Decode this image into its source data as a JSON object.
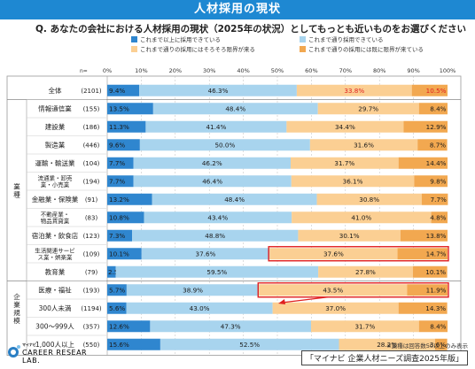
{
  "header": {
    "title": "人材採用の現状",
    "question": "Q.  あなたの会社における人材採用の現状（2025年の状況）としてもっとも近いものをお選びください"
  },
  "footer": {
    "note": "※業種は回答数50以上のみ表示",
    "source": "「マイナビ 企業人材ニーズ調査2025年版」"
  },
  "logo": {
    "small_text": "マイナビ",
    "line1": "CAREER RESEARCH",
    "line2": "LAB."
  },
  "chart_data": {
    "type": "bar",
    "orientation": "horizontal",
    "stacked": true,
    "n_label": "n=",
    "xlim": [
      0,
      100
    ],
    "x_ticks": [
      "0%",
      "10%",
      "20%",
      "30%",
      "40%",
      "50%",
      "60%",
      "70%",
      "80%",
      "90%",
      "100%"
    ],
    "grid": true,
    "legend_position": "top",
    "series": [
      {
        "name": "これまで以上に採用できている",
        "color": "#2f86cf"
      },
      {
        "name": "これまで通り採用できている",
        "color": "#a8d4ee"
      },
      {
        "name": "これまで通りの採用にはそろそろ限界が来る",
        "color": "#fbcf93"
      },
      {
        "name": "これまで通りの採用には既に限界が来ている",
        "color": "#f2a850"
      }
    ],
    "groups": [
      {
        "label": "",
        "start": 0,
        "end": 0
      },
      {
        "label": "業種",
        "start": 1,
        "end": 10
      },
      {
        "label": "企業規模",
        "start": 11,
        "end": 13
      }
    ],
    "rows": [
      {
        "label": "全体",
        "n": "(2101)",
        "values": [
          9.4,
          46.3,
          33.8,
          10.5
        ],
        "labels": [
          "9.4%",
          "46.3%",
          "33.8%",
          "10.5%"
        ],
        "highlight_text": true
      },
      {
        "label": "情報通信業",
        "n": "(155)",
        "values": [
          13.5,
          48.4,
          29.7,
          8.4
        ],
        "labels": [
          "13.5%",
          "48.4%",
          "29.7%",
          "8.4%"
        ]
      },
      {
        "label": "建設業",
        "n": "(186)",
        "values": [
          11.3,
          41.4,
          34.4,
          12.9
        ],
        "labels": [
          "11.3%",
          "41.4%",
          "34.4%",
          "12.9%"
        ]
      },
      {
        "label": "製造業",
        "n": "(446)",
        "values": [
          9.6,
          50.0,
          31.6,
          8.7
        ],
        "labels": [
          "9.6%",
          "50.0%",
          "31.6%",
          "8.7%"
        ]
      },
      {
        "label": "運輸・輸送業",
        "n": "(104)",
        "values": [
          7.7,
          46.2,
          31.7,
          14.4
        ],
        "labels": [
          "7.7%",
          "46.2%",
          "31.7%",
          "14.4%"
        ]
      },
      {
        "label": "流通業・卸売業・小売業",
        "n": "(194)",
        "values": [
          7.7,
          46.4,
          36.1,
          9.8
        ],
        "labels": [
          "7.7%",
          "46.4%",
          "36.1%",
          "9.8%"
        ]
      },
      {
        "label": "金融業・保険業",
        "n": "(91)",
        "values": [
          13.2,
          48.4,
          30.8,
          7.7
        ],
        "labels": [
          "13.2%",
          "48.4%",
          "30.8%",
          "7.7%"
        ]
      },
      {
        "label": "不動産業・物品賃貸業",
        "n": "(83)",
        "values": [
          10.8,
          43.4,
          41.0,
          4.8
        ],
        "labels": [
          "10.8%",
          "43.4%",
          "41.0%",
          "4.8%"
        ]
      },
      {
        "label": "宿泊業・飲食店",
        "n": "(123)",
        "values": [
          7.3,
          48.8,
          30.1,
          13.8
        ],
        "labels": [
          "7.3%",
          "48.8%",
          "30.1%",
          "13.8%"
        ]
      },
      {
        "label": "生活関連サービス業・娯楽業",
        "n": "(109)",
        "values": [
          10.1,
          37.6,
          37.6,
          14.7
        ],
        "labels": [
          "10.1%",
          "37.6%",
          "37.6%",
          "14.7%"
        ],
        "box": true
      },
      {
        "label": "教育業",
        "n": "(79)",
        "values": [
          2.5,
          59.5,
          27.8,
          10.1
        ],
        "labels": [
          "2.5%",
          "59.5%",
          "27.8%",
          "10.1%"
        ]
      },
      {
        "label": "医療・福祉",
        "n": "(193)",
        "values": [
          5.7,
          38.9,
          43.5,
          11.9
        ],
        "labels": [
          "5.7%",
          "38.9%",
          "43.5%",
          "11.9%"
        ],
        "box": true
      },
      {
        "label": "300人未満",
        "n": "(1194)",
        "values": [
          5.6,
          43.0,
          37.0,
          14.3
        ],
        "labels": [
          "5.6%",
          "43.0%",
          "37.0%",
          "14.3%"
        ]
      },
      {
        "label": "300～999人",
        "n": "(357)",
        "values": [
          12.6,
          47.3,
          31.7,
          8.4
        ],
        "labels": [
          "12.6%",
          "47.3%",
          "31.7%",
          "8.4%"
        ]
      },
      {
        "label": "1,000人以上",
        "n": "(550)",
        "values": [
          15.6,
          52.5,
          28.2,
          3.6
        ],
        "labels": [
          "15.6%",
          "52.5%",
          "28.2%",
          "3.6%"
        ]
      }
    ]
  }
}
